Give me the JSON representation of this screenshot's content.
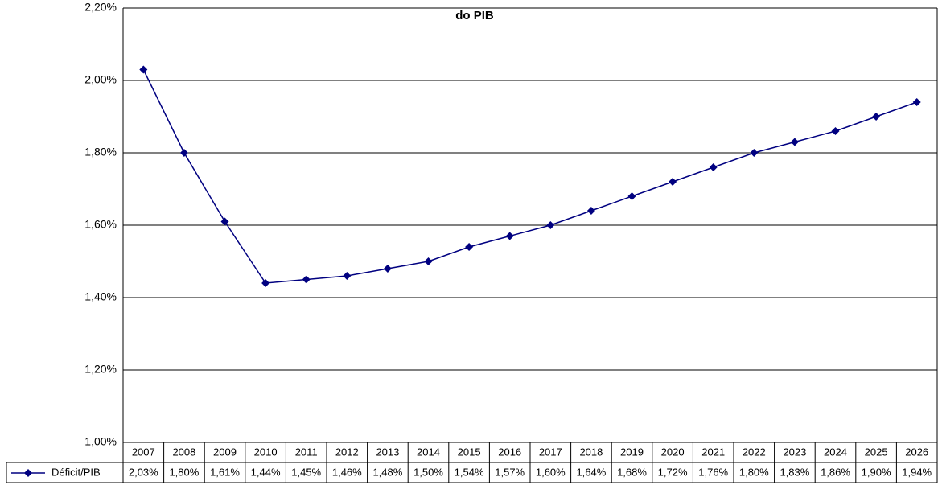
{
  "chart_data": {
    "type": "line",
    "title": "do PIB",
    "categories": [
      "2007",
      "2008",
      "2009",
      "2010",
      "2011",
      "2012",
      "2013",
      "2014",
      "2015",
      "2016",
      "2017",
      "2018",
      "2019",
      "2020",
      "2021",
      "2022",
      "2023",
      "2024",
      "2025",
      "2026"
    ],
    "series": [
      {
        "name": "Déficit/PIB",
        "color": "#000080",
        "values": [
          2.03,
          1.8,
          1.61,
          1.44,
          1.45,
          1.46,
          1.48,
          1.5,
          1.54,
          1.57,
          1.6,
          1.64,
          1.68,
          1.72,
          1.76,
          1.8,
          1.83,
          1.86,
          1.9,
          1.94
        ],
        "value_labels": [
          "2,03%",
          "1,80%",
          "1,61%",
          "1,44%",
          "1,45%",
          "1,46%",
          "1,48%",
          "1,50%",
          "1,54%",
          "1,57%",
          "1,60%",
          "1,64%",
          "1,68%",
          "1,72%",
          "1,76%",
          "1,80%",
          "1,83%",
          "1,86%",
          "1,90%",
          "1,94%"
        ]
      }
    ],
    "ylim": [
      1.0,
      2.2
    ],
    "yticks": [
      {
        "value": 1.0,
        "label": "1,00%"
      },
      {
        "value": 1.2,
        "label": "1,20%"
      },
      {
        "value": 1.4,
        "label": "1,40%"
      },
      {
        "value": 1.6,
        "label": "1,60%"
      },
      {
        "value": 1.8,
        "label": "1,80%"
      },
      {
        "value": 2.0,
        "label": "2,00%"
      },
      {
        "value": 2.2,
        "label": "2,20%"
      }
    ],
    "grid": true
  }
}
